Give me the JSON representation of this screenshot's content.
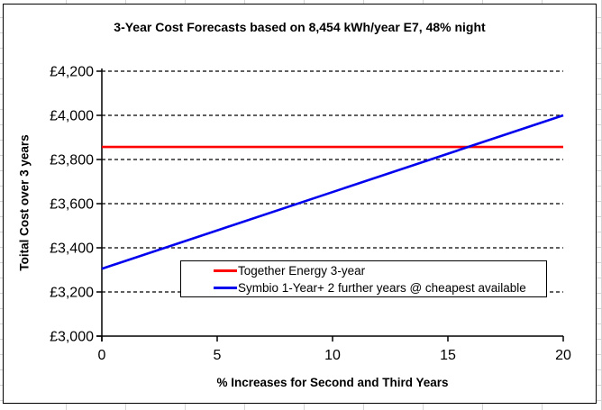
{
  "chart_data": {
    "type": "line",
    "title": "3-Year Cost Forecasts based on 8,454 kWh/year E7, 48% night",
    "xlabel": "% Increases for Second and Third Years",
    "ylabel": "Toital Cost over 3 years",
    "xlim": [
      0,
      20
    ],
    "ylim": [
      3000,
      4200
    ],
    "x_ticks": [
      0,
      5,
      10,
      15,
      20
    ],
    "x_tick_labels": [
      "0",
      "5",
      "10",
      "15",
      "20"
    ],
    "y_ticks": [
      3000,
      3200,
      3400,
      3600,
      3800,
      4000,
      4200
    ],
    "y_tick_labels": [
      "£3,000",
      "£3,200",
      "£3,400",
      "£3,600",
      "£3,800",
      "£4,000",
      "£4,200"
    ],
    "grid": "horizontal dashed black",
    "legend_position": "inside bottom-center, bordered box",
    "series": [
      {
        "name": "Together Energy 3-year",
        "color": "#ff0000",
        "x": [
          0,
          20
        ],
        "values": [
          3857,
          3857
        ]
      },
      {
        "name": "Symbio 1-Year+ 2 further years @ cheapest available",
        "color": "#0000ee",
        "x": [
          0,
          20
        ],
        "values": [
          3305,
          4000
        ]
      }
    ]
  }
}
